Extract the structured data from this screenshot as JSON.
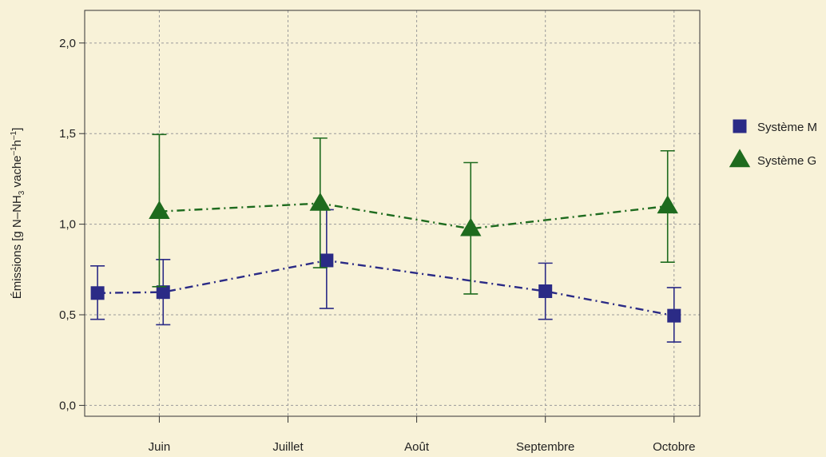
{
  "chart_data": {
    "type": "line",
    "ylabel_parts": {
      "pre": "Émissions [g N–NH",
      "sub": "3",
      "mid": " vache",
      "sup1": "–1",
      "mid2": "h",
      "sup2": "–1",
      "post": "]"
    },
    "xlabel": "",
    "x_ticks": [
      {
        "label": "Juin",
        "pos": 1.0
      },
      {
        "label": "Juillet",
        "pos": 2.0
      },
      {
        "label": "Août",
        "pos": 3.0
      },
      {
        "label": "Septembre",
        "pos": 4.0
      },
      {
        "label": "Octobre",
        "pos": 5.0
      }
    ],
    "y_ticks": [
      {
        "label": "0,0",
        "value": 0.0
      },
      {
        "label": "0,5",
        "value": 0.5
      },
      {
        "label": "1,0",
        "value": 1.0
      },
      {
        "label": "1,5",
        "value": 1.5
      },
      {
        "label": "2,0",
        "value": 2.0
      }
    ],
    "xlim": [
      0.42,
      5.2
    ],
    "ylim": [
      -0.06,
      2.18
    ],
    "grid": true,
    "legend_position": "right",
    "series": [
      {
        "name": "Système M",
        "color": "#2b2b86",
        "marker": "square",
        "line_style": "dashdot",
        "points": [
          {
            "x": 0.52,
            "y": 0.62,
            "low": 0.475,
            "high": 0.77
          },
          {
            "x": 1.03,
            "y": 0.625,
            "low": 0.445,
            "high": 0.805
          },
          {
            "x": 2.3,
            "y": 0.8,
            "low": 0.535,
            "high": 1.08
          },
          {
            "x": 4.0,
            "y": 0.63,
            "low": 0.475,
            "high": 0.785
          },
          {
            "x": 5.0,
            "y": 0.495,
            "low": 0.35,
            "high": 0.65
          }
        ]
      },
      {
        "name": "Système G",
        "color": "#1e6b1e",
        "marker": "triangle",
        "line_style": "dashdot",
        "points": [
          {
            "x": 1.0,
            "y": 1.07,
            "low": 0.655,
            "high": 1.495
          },
          {
            "x": 2.25,
            "y": 1.115,
            "low": 0.76,
            "high": 1.475
          },
          {
            "x": 3.42,
            "y": 0.975,
            "low": 0.615,
            "high": 1.34
          },
          {
            "x": 4.95,
            "y": 1.1,
            "low": 0.79,
            "high": 1.405
          }
        ]
      }
    ]
  }
}
